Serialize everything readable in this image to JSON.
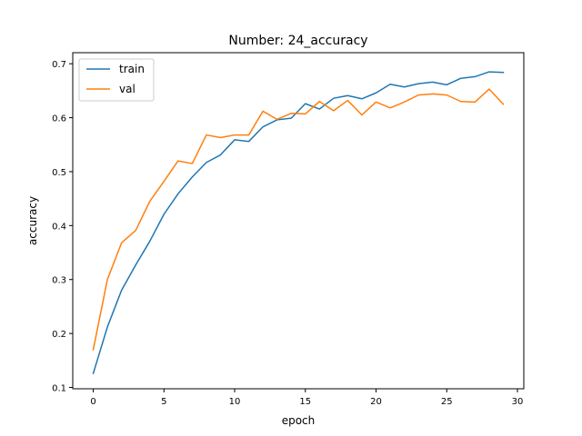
{
  "chart_data": {
    "type": "line",
    "title": "Number: 24_accuracy",
    "xlabel": "epoch",
    "ylabel": "accuracy",
    "xlim": [
      -1.45,
      30.45
    ],
    "ylim": [
      0.0975,
      0.7205
    ],
    "xticks": [
      0,
      5,
      10,
      15,
      20,
      25,
      30
    ],
    "yticks": [
      0.1,
      0.2,
      0.3,
      0.4,
      0.5,
      0.6,
      0.7
    ],
    "xtick_labels": [
      "0",
      "5",
      "10",
      "15",
      "20",
      "25",
      "30"
    ],
    "ytick_labels": [
      "0.1",
      "0.2",
      "0.3",
      "0.4",
      "0.5",
      "0.6",
      "0.7"
    ],
    "legend_position": "top-left",
    "x": [
      0,
      1,
      2,
      3,
      4,
      5,
      6,
      7,
      8,
      9,
      10,
      11,
      12,
      13,
      14,
      15,
      16,
      17,
      18,
      19,
      20,
      21,
      22,
      23,
      24,
      25,
      26,
      27,
      28,
      29
    ],
    "series": [
      {
        "name": "train",
        "color": "#1f77b4",
        "values": [
          0.126,
          0.212,
          0.28,
          0.327,
          0.371,
          0.421,
          0.459,
          0.49,
          0.517,
          0.531,
          0.559,
          0.556,
          0.583,
          0.596,
          0.599,
          0.626,
          0.616,
          0.636,
          0.641,
          0.635,
          0.646,
          0.662,
          0.657,
          0.663,
          0.666,
          0.661,
          0.673,
          0.676,
          0.685,
          0.684
        ]
      },
      {
        "name": "val",
        "color": "#ff7f0e",
        "values": [
          0.17,
          0.3,
          0.368,
          0.391,
          0.445,
          0.482,
          0.52,
          0.515,
          0.568,
          0.563,
          0.568,
          0.568,
          0.612,
          0.597,
          0.608,
          0.607,
          0.63,
          0.613,
          0.632,
          0.605,
          0.629,
          0.618,
          0.629,
          0.642,
          0.644,
          0.642,
          0.63,
          0.629,
          0.653,
          0.625
        ]
      }
    ]
  }
}
